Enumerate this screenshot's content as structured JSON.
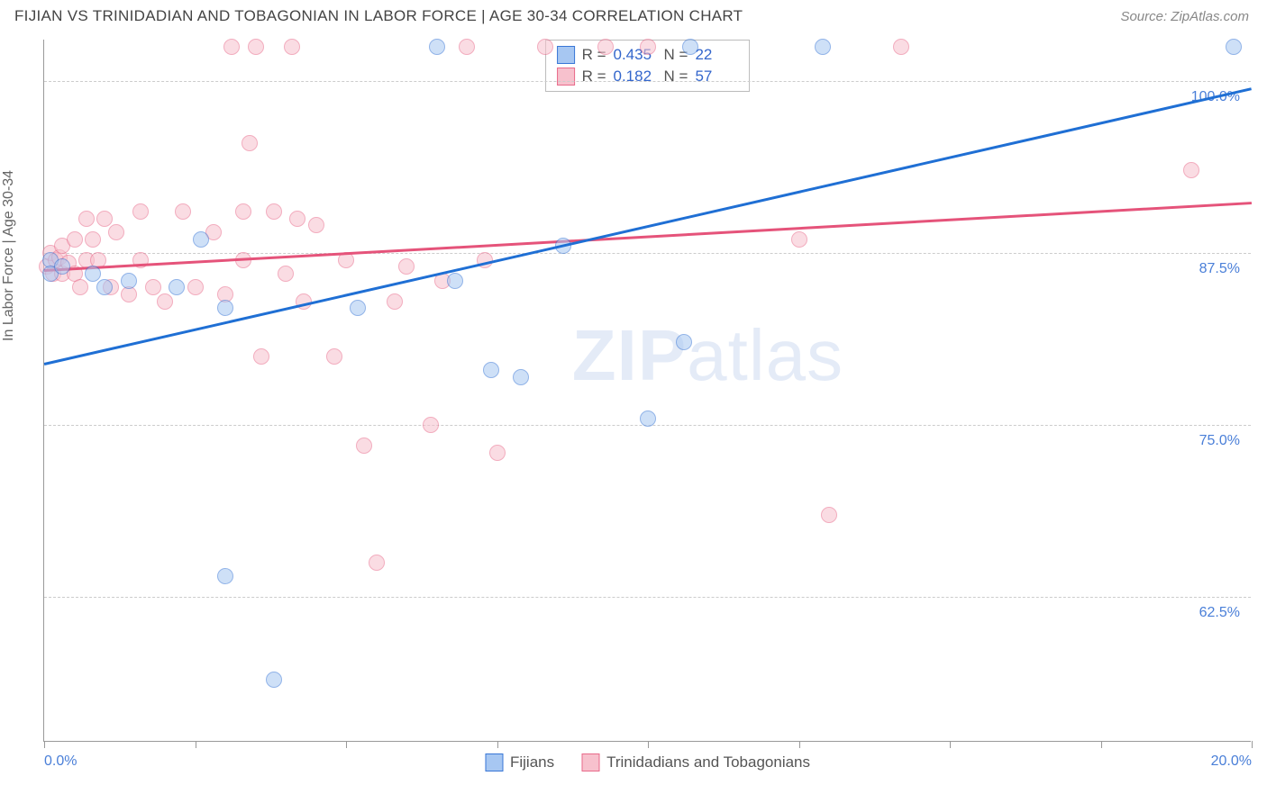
{
  "header": {
    "title": "FIJIAN VS TRINIDADIAN AND TOBAGONIAN IN LABOR FORCE | AGE 30-34 CORRELATION CHART",
    "source": "Source: ZipAtlas.com"
  },
  "ylabel": "In Labor Force | Age 30-34",
  "watermark": {
    "bold": "ZIP",
    "rest": "atlas"
  },
  "chart": {
    "type": "scatter",
    "xlim": [
      0,
      20
    ],
    "ylim": [
      52,
      103
    ],
    "x_ticks_labeled": [
      {
        "v": 0,
        "label": "0.0%"
      },
      {
        "v": 20,
        "label": "20.0%"
      }
    ],
    "x_ticks_unlabeled": [
      2.5,
      5,
      7.5,
      10,
      12.5,
      15,
      17.5
    ],
    "y_gridlines": [
      62.5,
      75.0,
      87.5,
      100.0
    ],
    "y_tick_labels": [
      "62.5%",
      "75.0%",
      "87.5%",
      "100.0%"
    ],
    "background_color": "#ffffff",
    "grid_color": "#cccccc",
    "axis_color": "#999999",
    "label_color": "#4a7fd8",
    "marker_radius": 9,
    "marker_opacity": 0.55,
    "line_width": 2.5
  },
  "series": {
    "fijians": {
      "label": "Fijians",
      "R": "0.435",
      "N": "22",
      "fill": "#a7c7f2",
      "stroke": "#3876d6",
      "line_color": "#1f6fd4",
      "trend": {
        "x1": 0,
        "y1": 79.5,
        "x2": 20,
        "y2": 99.5
      },
      "points": [
        {
          "x": 0.1,
          "y": 87.0
        },
        {
          "x": 0.1,
          "y": 86.0
        },
        {
          "x": 0.3,
          "y": 86.5
        },
        {
          "x": 0.8,
          "y": 86.0
        },
        {
          "x": 1.0,
          "y": 85.0
        },
        {
          "x": 1.4,
          "y": 85.5
        },
        {
          "x": 2.2,
          "y": 85.0
        },
        {
          "x": 2.6,
          "y": 88.5
        },
        {
          "x": 3.0,
          "y": 83.5
        },
        {
          "x": 3.0,
          "y": 64.0
        },
        {
          "x": 3.8,
          "y": 56.5
        },
        {
          "x": 5.2,
          "y": 83.5
        },
        {
          "x": 6.5,
          "y": 102.5
        },
        {
          "x": 6.8,
          "y": 85.5
        },
        {
          "x": 7.4,
          "y": 79.0
        },
        {
          "x": 7.9,
          "y": 78.5
        },
        {
          "x": 8.6,
          "y": 88.0
        },
        {
          "x": 10.6,
          "y": 81.0
        },
        {
          "x": 10.0,
          "y": 75.5
        },
        {
          "x": 10.7,
          "y": 102.5
        },
        {
          "x": 12.9,
          "y": 102.5
        },
        {
          "x": 19.7,
          "y": 102.5
        }
      ]
    },
    "trin": {
      "label": "Trinidadians and Tobagonians",
      "R": "0.182",
      "N": "57",
      "fill": "#f7c1cd",
      "stroke": "#e86a8a",
      "line_color": "#e5537a",
      "trend": {
        "x1": 0,
        "y1": 86.3,
        "x2": 20,
        "y2": 91.2
      },
      "points": [
        {
          "x": 0.05,
          "y": 86.5
        },
        {
          "x": 0.1,
          "y": 87.5
        },
        {
          "x": 0.15,
          "y": 86.0
        },
        {
          "x": 0.2,
          "y": 87.0
        },
        {
          "x": 0.25,
          "y": 87.2
        },
        {
          "x": 0.3,
          "y": 88.0
        },
        {
          "x": 0.3,
          "y": 86.0
        },
        {
          "x": 0.4,
          "y": 86.8
        },
        {
          "x": 0.5,
          "y": 88.5
        },
        {
          "x": 0.5,
          "y": 86.0
        },
        {
          "x": 0.6,
          "y": 85.0
        },
        {
          "x": 0.7,
          "y": 90.0
        },
        {
          "x": 0.7,
          "y": 87.0
        },
        {
          "x": 0.8,
          "y": 88.5
        },
        {
          "x": 0.9,
          "y": 87.0
        },
        {
          "x": 1.0,
          "y": 90.0
        },
        {
          "x": 1.1,
          "y": 85.0
        },
        {
          "x": 1.2,
          "y": 89.0
        },
        {
          "x": 1.4,
          "y": 84.5
        },
        {
          "x": 1.6,
          "y": 90.5
        },
        {
          "x": 1.6,
          "y": 87.0
        },
        {
          "x": 1.8,
          "y": 85.0
        },
        {
          "x": 2.0,
          "y": 84.0
        },
        {
          "x": 2.3,
          "y": 90.5
        },
        {
          "x": 2.5,
          "y": 85.0
        },
        {
          "x": 2.8,
          "y": 89.0
        },
        {
          "x": 3.0,
          "y": 84.5
        },
        {
          "x": 3.1,
          "y": 102.5
        },
        {
          "x": 3.3,
          "y": 87.0
        },
        {
          "x": 3.3,
          "y": 90.5
        },
        {
          "x": 3.4,
          "y": 95.5
        },
        {
          "x": 3.5,
          "y": 102.5
        },
        {
          "x": 3.6,
          "y": 80.0
        },
        {
          "x": 3.8,
          "y": 90.5
        },
        {
          "x": 4.0,
          "y": 86.0
        },
        {
          "x": 4.1,
          "y": 102.5
        },
        {
          "x": 4.2,
          "y": 90.0
        },
        {
          "x": 4.3,
          "y": 84.0
        },
        {
          "x": 4.5,
          "y": 89.5
        },
        {
          "x": 4.8,
          "y": 80.0
        },
        {
          "x": 5.0,
          "y": 87.0
        },
        {
          "x": 5.3,
          "y": 73.5
        },
        {
          "x": 5.5,
          "y": 65.0
        },
        {
          "x": 5.8,
          "y": 84.0
        },
        {
          "x": 6.0,
          "y": 86.5
        },
        {
          "x": 6.4,
          "y": 75.0
        },
        {
          "x": 6.6,
          "y": 85.5
        },
        {
          "x": 7.0,
          "y": 102.5
        },
        {
          "x": 7.3,
          "y": 87.0
        },
        {
          "x": 7.5,
          "y": 73.0
        },
        {
          "x": 8.3,
          "y": 102.5
        },
        {
          "x": 9.3,
          "y": 102.5
        },
        {
          "x": 10.0,
          "y": 102.5
        },
        {
          "x": 12.5,
          "y": 88.5
        },
        {
          "x": 13.0,
          "y": 68.5
        },
        {
          "x": 14.2,
          "y": 102.5
        },
        {
          "x": 19.0,
          "y": 93.5
        }
      ]
    }
  },
  "legend": {
    "r_label": "R =",
    "n_label": "N ="
  }
}
